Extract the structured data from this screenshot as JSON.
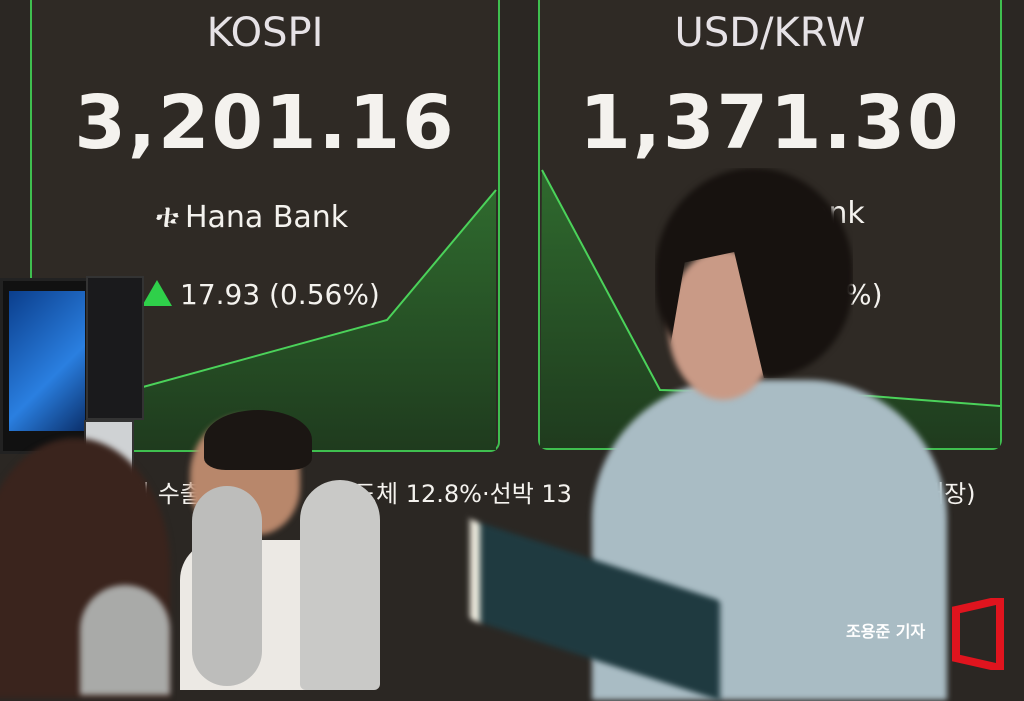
{
  "kospi": {
    "title": "KOSPI",
    "value": "3,201.16",
    "bank": "Hana Bank",
    "change": "17.93 (0.56%)"
  },
  "usdkrw": {
    "title": "USD/KRW",
    "value": "1,371.30",
    "bank": "ank",
    "change": "%)"
  },
  "ticker": {
    "left": "일 수출",
    "mid": "반도체 12.8%·선박 13",
    "right": "개장)"
  },
  "credit": "조용준 기자",
  "colors": {
    "chart_green": "#3fbf4f",
    "screen_bg": "#2b2723",
    "logo_red": "#e0141e"
  }
}
